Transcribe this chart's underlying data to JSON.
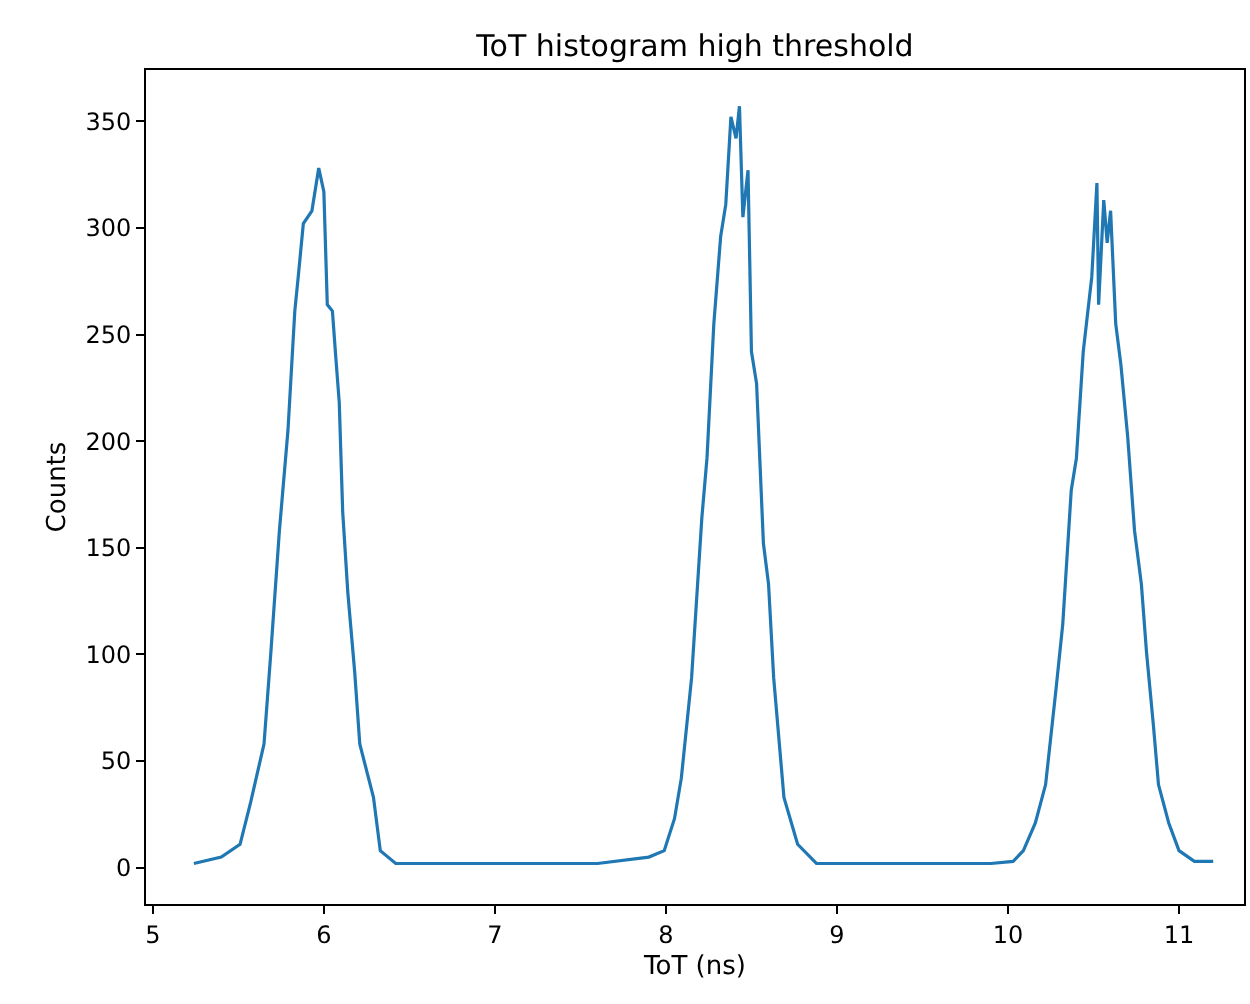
{
  "chart_data": {
    "type": "line",
    "title": "ToT histogram high threshold",
    "xlabel": "ToT (ns)",
    "ylabel": "Counts",
    "xlim": [
      4.96,
      11.38
    ],
    "ylim": [
      -17,
      374
    ],
    "xticks": [
      5,
      6,
      7,
      8,
      9,
      10,
      11
    ],
    "yticks": [
      0,
      50,
      100,
      150,
      200,
      250,
      300,
      350
    ],
    "series": [
      {
        "color": "#1f77b4",
        "x": [
          5.24,
          5.4,
          5.51,
          5.57,
          5.65,
          5.69,
          5.74,
          5.79,
          5.83,
          5.85,
          5.88,
          5.93,
          5.97,
          6.0,
          6.02,
          6.05,
          6.07,
          6.09,
          6.11,
          6.14,
          6.18,
          6.21,
          6.29,
          6.33,
          6.42,
          7.6,
          7.9,
          7.99,
          8.05,
          8.09,
          8.15,
          8.21,
          8.24,
          8.28,
          8.32,
          8.35,
          8.38,
          8.41,
          8.43,
          8.45,
          8.48,
          8.5,
          8.53,
          8.57,
          8.6,
          8.63,
          8.69,
          8.77,
          8.88,
          9.9,
          10.03,
          10.09,
          10.16,
          10.22,
          10.28,
          10.32,
          10.37,
          10.4,
          10.44,
          10.49,
          10.52,
          10.53,
          10.56,
          10.58,
          10.6,
          10.63,
          10.66,
          10.7,
          10.74,
          10.78,
          10.81,
          10.85,
          10.88,
          10.94,
          11.0,
          11.09,
          11.2
        ],
        "values": [
          2,
          5,
          11,
          30,
          58,
          101,
          158,
          205,
          261,
          277,
          302,
          308,
          328,
          317,
          264,
          261,
          239,
          218,
          167,
          129,
          92,
          58,
          33,
          8,
          2,
          2,
          5,
          8,
          23,
          42,
          89,
          164,
          192,
          255,
          296,
          311,
          352,
          342,
          357,
          305,
          327,
          242,
          227,
          152,
          133,
          89,
          33,
          11,
          2,
          2,
          3,
          8,
          21,
          39,
          83,
          114,
          177,
          192,
          242,
          277,
          321,
          264,
          313,
          293,
          308,
          255,
          236,
          202,
          158,
          133,
          101,
          67,
          39,
          21,
          8,
          3,
          3
        ]
      }
    ]
  }
}
